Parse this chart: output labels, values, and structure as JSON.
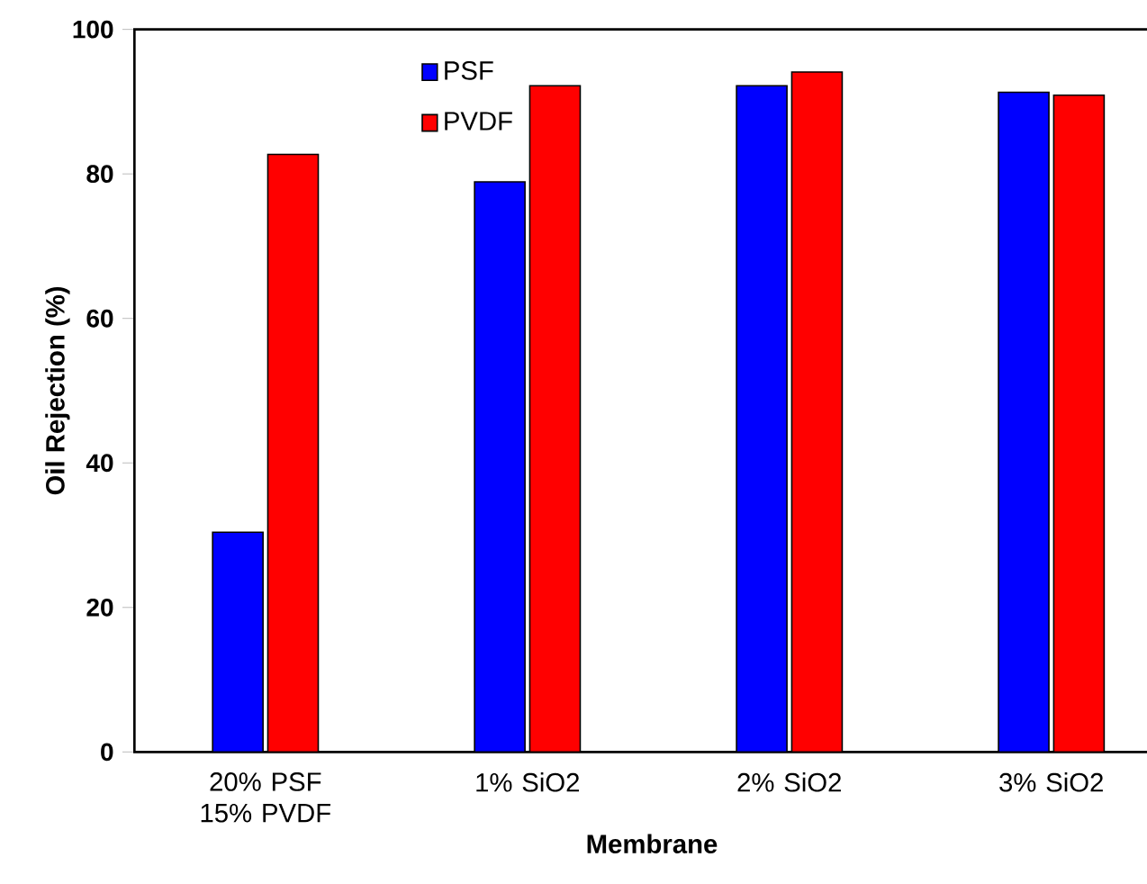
{
  "chart_data": {
    "type": "bar",
    "xlabel": "Membrane",
    "ylabel": "Oil Rejection (%)",
    "categories": [
      "20% PSF 15% PVDF",
      "1% SiO2",
      "2% SiO2",
      "3% SiO2"
    ],
    "series": [
      {
        "name": "PSF",
        "color": "#0000ff",
        "values": [
          30.4,
          78.9,
          92.2,
          91.3
        ]
      },
      {
        "name": "PVDF",
        "color": "#ff0000",
        "values": [
          82.7,
          92.2,
          94.1,
          90.9
        ]
      }
    ],
    "ylim": [
      0,
      100
    ],
    "yticks": [
      0,
      20,
      40,
      60,
      80,
      100
    ],
    "grid": false,
    "legend": "top left"
  }
}
